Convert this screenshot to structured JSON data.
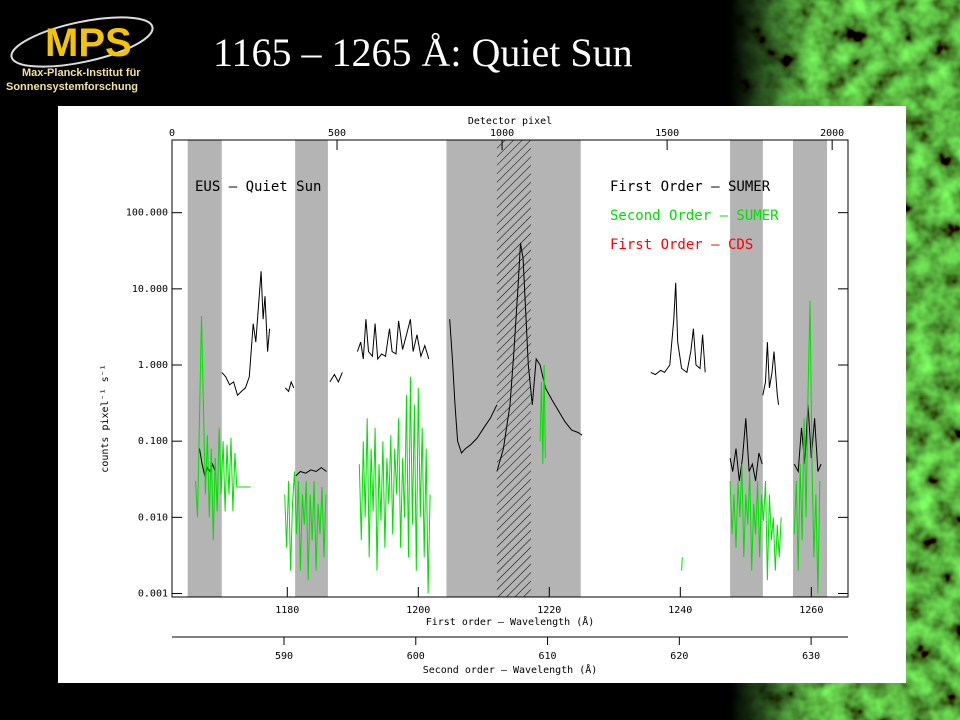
{
  "slide": {
    "title": "1165 – 1265 Å: Quiet Sun",
    "logo": {
      "name": "MPS",
      "line1": "Max-Planck-Institut für",
      "line2": "Sonnensystemforschung"
    }
  },
  "chart_data": {
    "type": "line",
    "log_y": true,
    "annotation": "EUS – Quiet Sun",
    "xlabel": "First order – Wavelength (Å)",
    "ylabel": "counts pixel⁻¹ s⁻¹",
    "xlim": [
      1162.4,
      1265.6
    ],
    "xticks": [
      1180,
      1200,
      1220,
      1240,
      1260
    ],
    "ylim": [
      0.0009,
      900
    ],
    "yticks": [
      {
        "value": 0.001,
        "label": "0.001"
      },
      {
        "value": 0.01,
        "label": "0.010"
      },
      {
        "value": 0.1,
        "label": "0.100"
      },
      {
        "value": 1,
        "label": "1.000"
      },
      {
        "value": 10,
        "label": "10.000"
      },
      {
        "value": 100,
        "label": "100.000"
      }
    ],
    "top_axis": {
      "label": "Detector pixel",
      "xlim": [
        0,
        2048
      ],
      "xticks": [
        0,
        500,
        1000,
        1500,
        2000
      ]
    },
    "second_axis": {
      "label": "Second order – Wavelength (Å)",
      "xlim": [
        581.5,
        632.8
      ],
      "xticks": [
        590,
        600,
        610,
        620,
        630
      ]
    },
    "shaded_ranges": [
      [
        1164.8,
        1170.0
      ],
      [
        1181.2,
        1186.2
      ],
      [
        1204.3,
        1224.8
      ],
      [
        1247.6,
        1252.6
      ],
      [
        1257.2,
        1262.4
      ]
    ],
    "shade_color": "#b4b4b4",
    "hatched_range": [
      1212.0,
      1217.2
    ],
    "series": [
      {
        "name": "First Order – SUMER",
        "color": "#000000",
        "x": [
          1166.6,
          1167.0,
          1167.4,
          1167.8,
          1168.2,
          1168.6,
          1169.0,
          null,
          1170.0,
          1170.6,
          1171.2,
          1171.8,
          1172.4,
          1173.0,
          1173.6,
          1174.2,
          1174.8,
          1175.2,
          1175.6,
          1176.0,
          1176.3,
          1176.6,
          1177.0,
          1177.3,
          null,
          1179.7,
          1180.2,
          1180.6,
          1181.0,
          null,
          1181.3,
          1182.0,
          1182.8,
          1183.6,
          1184.4,
          1185.2,
          1186.0,
          null,
          1186.5,
          1187.2,
          1187.8,
          1188.4,
          null,
          1190.7,
          1191.2,
          1191.6,
          1192.0,
          1192.4,
          1193.0,
          1193.4,
          1193.8,
          1194.4,
          1195.0,
          1195.6,
          1196.0,
          1196.6,
          1197.0,
          1197.6,
          1198.2,
          1198.8,
          1199.2,
          1199.8,
          1200.4,
          1201.0,
          1201.6,
          null,
          1204.8,
          1205.2,
          1205.6,
          1206.0,
          1206.6,
          1207.2,
          1208.0,
          1209.0,
          1210.0,
          1211.0,
          1212.0,
          null,
          1212.0,
          1213.0,
          1214.0,
          1214.6,
          1215.2,
          1215.6,
          1216.0,
          1216.4,
          1216.8,
          1217.4,
          1218.0,
          1218.6,
          1219.4,
          1220.4,
          1221.4,
          1222.4,
          1223.4,
          1224.4,
          1225.0,
          null,
          1235.5,
          1236.2,
          1237.0,
          1237.6,
          1238.4,
          1239.0,
          1239.3,
          1239.6,
          1240.2,
          1241.0,
          1241.6,
          1242.0,
          1242.4,
          1243.0,
          1243.4,
          1243.8,
          null,
          1247.6,
          1248.0,
          1248.5,
          1249.0,
          1249.5,
          1250.0,
          1250.5,
          1251.0,
          1251.5,
          1252.0,
          1252.5,
          null,
          1252.6,
          1253.0,
          1253.3,
          1253.6,
          1254.0,
          1254.3,
          1254.8,
          1255.0,
          null,
          1257.4,
          1258.0,
          1258.5,
          1259.0,
          1259.5,
          1260.0,
          1260.5,
          1261.0,
          1261.5
        ],
        "values": [
          0.08,
          0.05,
          0.035,
          0.045,
          0.04,
          0.05,
          0.04,
          null,
          0.8,
          0.7,
          0.55,
          0.6,
          0.4,
          0.45,
          0.5,
          0.7,
          3.5,
          2.0,
          6,
          17,
          4,
          8,
          1.5,
          3,
          null,
          0.5,
          0.45,
          0.6,
          0.5,
          null,
          0.035,
          0.04,
          0.038,
          0.042,
          0.04,
          0.045,
          0.04,
          null,
          0.6,
          0.75,
          0.6,
          0.8,
          null,
          1.5,
          2.0,
          1.2,
          4.0,
          1.5,
          1.3,
          3.5,
          1.2,
          1.4,
          1.3,
          3.0,
          1.5,
          1.4,
          3.8,
          1.6,
          2.5,
          4.0,
          1.5,
          2.5,
          1.3,
          1.8,
          1.2,
          null,
          4.0,
          1.2,
          0.3,
          0.1,
          0.07,
          0.08,
          0.09,
          0.11,
          0.15,
          0.2,
          0.3,
          null,
          0.04,
          0.08,
          0.3,
          1.5,
          10,
          40,
          25,
          5,
          1.0,
          0.3,
          1.2,
          1.0,
          0.5,
          0.35,
          0.25,
          0.18,
          0.14,
          0.13,
          0.12,
          null,
          0.8,
          0.75,
          0.85,
          0.8,
          1.0,
          4,
          12,
          2,
          0.9,
          0.8,
          1.5,
          3,
          1.0,
          0.9,
          2.5,
          0.8,
          null,
          0.06,
          0.04,
          0.08,
          0.03,
          0.06,
          0.2,
          0.04,
          0.05,
          0.03,
          0.07,
          0.05,
          null,
          0.4,
          0.6,
          2.0,
          0.5,
          0.8,
          1.5,
          0.4,
          0.3,
          null,
          0.05,
          0.04,
          0.15,
          0.05,
          0.3,
          0.06,
          0.2,
          0.04,
          0.05
        ]
      },
      {
        "name": "Second Order – SUMER",
        "color": "#00e000",
        "x": [
          1166.0,
          1166.3,
          1166.6,
          1166.9,
          1167.2,
          1167.5,
          1167.8,
          1168.1,
          1168.4,
          1168.7,
          1169.0,
          1169.3,
          1169.6,
          1169.9,
          1170.2,
          1170.5,
          1170.8,
          1171.1,
          1171.4,
          1171.7,
          1172.0,
          1172.3,
          1172.6,
          1173.5,
          1174.4,
          null,
          1179.6,
          1179.9,
          1180.2,
          1180.5,
          1180.8,
          1181.1,
          1181.4,
          1181.7,
          1182.0,
          1182.3,
          1182.6,
          1182.9,
          1183.2,
          1183.5,
          1183.8,
          1184.1,
          1184.4,
          1184.7,
          1185.0,
          1185.3,
          1185.6,
          1185.9,
          null,
          1191.0,
          1191.3,
          1191.6,
          1191.9,
          1192.2,
          1192.5,
          1192.8,
          1193.1,
          1193.4,
          1193.7,
          1194.0,
          1194.3,
          1194.6,
          1194.9,
          1195.2,
          1195.5,
          1195.8,
          1196.1,
          1196.4,
          1196.7,
          1197.0,
          1197.3,
          1197.6,
          1197.9,
          1198.2,
          1198.5,
          1198.8,
          1199.1,
          1199.4,
          1199.7,
          1200.0,
          1200.3,
          1200.6,
          1200.9,
          1201.2,
          1201.5,
          1201.8,
          null,
          1218.6,
          1218.8,
          1219.0,
          1219.2,
          1219.4,
          null,
          1240.2,
          1240.3,
          null,
          1247.6,
          1247.9,
          1248.2,
          1248.5,
          1248.8,
          1249.1,
          1249.4,
          1249.7,
          1250.0,
          1250.3,
          1250.6,
          1250.9,
          1251.2,
          1251.5,
          1251.8,
          1252.1,
          1252.4,
          1252.7,
          1253.0,
          1253.3,
          1253.6,
          1253.9,
          1254.2,
          1254.5,
          1254.8,
          1255.1,
          1255.4,
          null,
          1257.4,
          1257.7,
          1258.0,
          1258.3,
          1258.6,
          1258.9,
          1259.2,
          1259.5,
          1259.8,
          1260.1,
          1260.4,
          1260.7,
          1261.0,
          1261.3
        ],
        "values": [
          0.03,
          0.01,
          0.2,
          4.4,
          0.3,
          0.02,
          0.12,
          0.01,
          0.08,
          0.005,
          0.06,
          0.012,
          0.15,
          0.02,
          0.1,
          0.012,
          0.09,
          0.02,
          0.11,
          0.012,
          0.07,
          0.025,
          0.025,
          0.025,
          0.025,
          null,
          0.02,
          0.004,
          0.03,
          0.002,
          0.015,
          0.04,
          0.006,
          0.03,
          0.002,
          0.02,
          0.008,
          0.03,
          0.0015,
          0.02,
          0.005,
          0.03,
          0.002,
          0.015,
          0.006,
          0.025,
          0.003,
          0.02,
          null,
          0.05,
          0.005,
          0.1,
          0.01,
          0.2,
          0.003,
          0.08,
          0.012,
          0.15,
          0.002,
          0.05,
          0.009,
          0.1,
          0.004,
          0.06,
          0.015,
          0.12,
          0.006,
          0.08,
          0.02,
          0.2,
          0.004,
          0.06,
          0.01,
          0.4,
          0.003,
          0.7,
          0.008,
          0.3,
          0.002,
          0.5,
          0.01,
          0.15,
          0.003,
          0.08,
          0.001,
          0.02,
          null,
          0.1,
          0.6,
          0.05,
          1.0,
          0.06,
          null,
          0.002,
          0.003,
          null,
          0.03,
          0.006,
          0.02,
          0.004,
          0.03,
          0.01,
          0.05,
          0.003,
          0.02,
          0.008,
          0.04,
          0.002,
          0.015,
          0.006,
          0.03,
          0.003,
          0.02,
          0.009,
          0.03,
          0.0015,
          0.02,
          0.005,
          0.01,
          0.002,
          0.008,
          0.003,
          0.01,
          null,
          0.006,
          0.03,
          0.002,
          0.05,
          0.005,
          0.2,
          0.01,
          0.4,
          7,
          0.05,
          0.003,
          0.02,
          0.001,
          0.03
        ]
      },
      {
        "name": "First Order – CDS",
        "color": "#ff0000",
        "x": [],
        "values": []
      }
    ]
  }
}
